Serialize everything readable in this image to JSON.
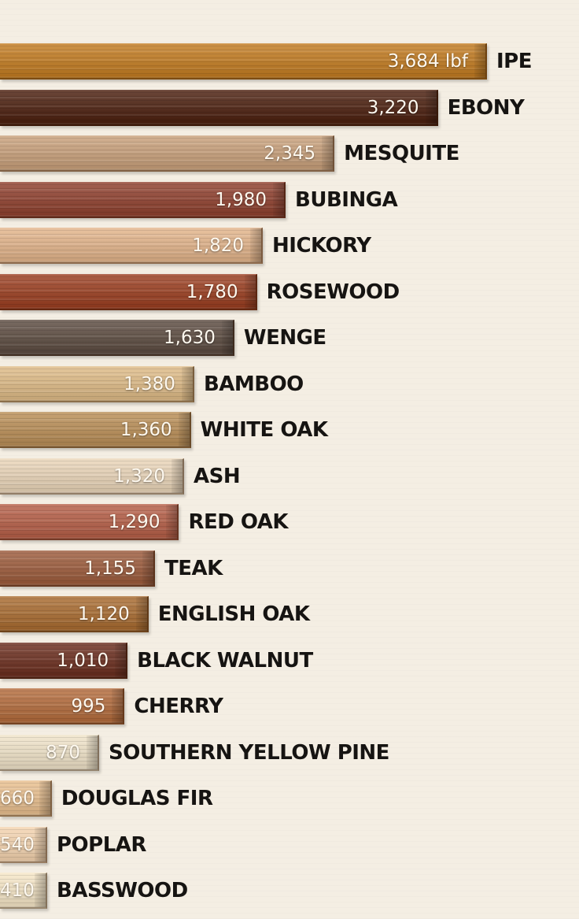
{
  "chart_data": {
    "type": "bar",
    "orientation": "horizontal",
    "categories": [
      "IPE",
      "EBONY",
      "MESQUITE",
      "BUBINGA",
      "HICKORY",
      "ROSEWOOD",
      "WENGE",
      "BAMBOO",
      "WHITE OAK",
      "ASH",
      "RED OAK",
      "TEAK",
      "ENGLISH OAK",
      "BLACK WALNUT",
      "CHERRY",
      "SOUTHERN YELLOW PINE",
      "DOUGLAS FIR",
      "POPLAR",
      "BASSWOOD"
    ],
    "values": [
      3684,
      3220,
      2345,
      1980,
      1820,
      1780,
      1630,
      1380,
      1360,
      1320,
      1290,
      1155,
      1120,
      1010,
      995,
      870,
      660,
      540,
      410
    ],
    "value_labels": [
      "3,684 lbf",
      "3,220",
      "2,345",
      "1,980",
      "1,820",
      "1,780",
      "1,630",
      "1,380",
      "1,360",
      "1,320",
      "1,290",
      "1,155",
      "1,120",
      "1,010",
      "995",
      "870",
      "660",
      "540",
      "410"
    ],
    "bar_colors": [
      "#c27a1e",
      "#4a1d0c",
      "#c9a07a",
      "#8e3e2c",
      "#e3b48a",
      "#9a3c1e",
      "#5b4a3f",
      "#deba85",
      "#b98d55",
      "#ead5b8",
      "#b55d45",
      "#9c5a3a",
      "#a86a2e",
      "#6a2c1c",
      "#b36a3a",
      "#f0e3c8",
      "#e9bf8e",
      "#f4d3ae",
      "#f6e6c6"
    ],
    "labels_position": "right of bar"
  }
}
